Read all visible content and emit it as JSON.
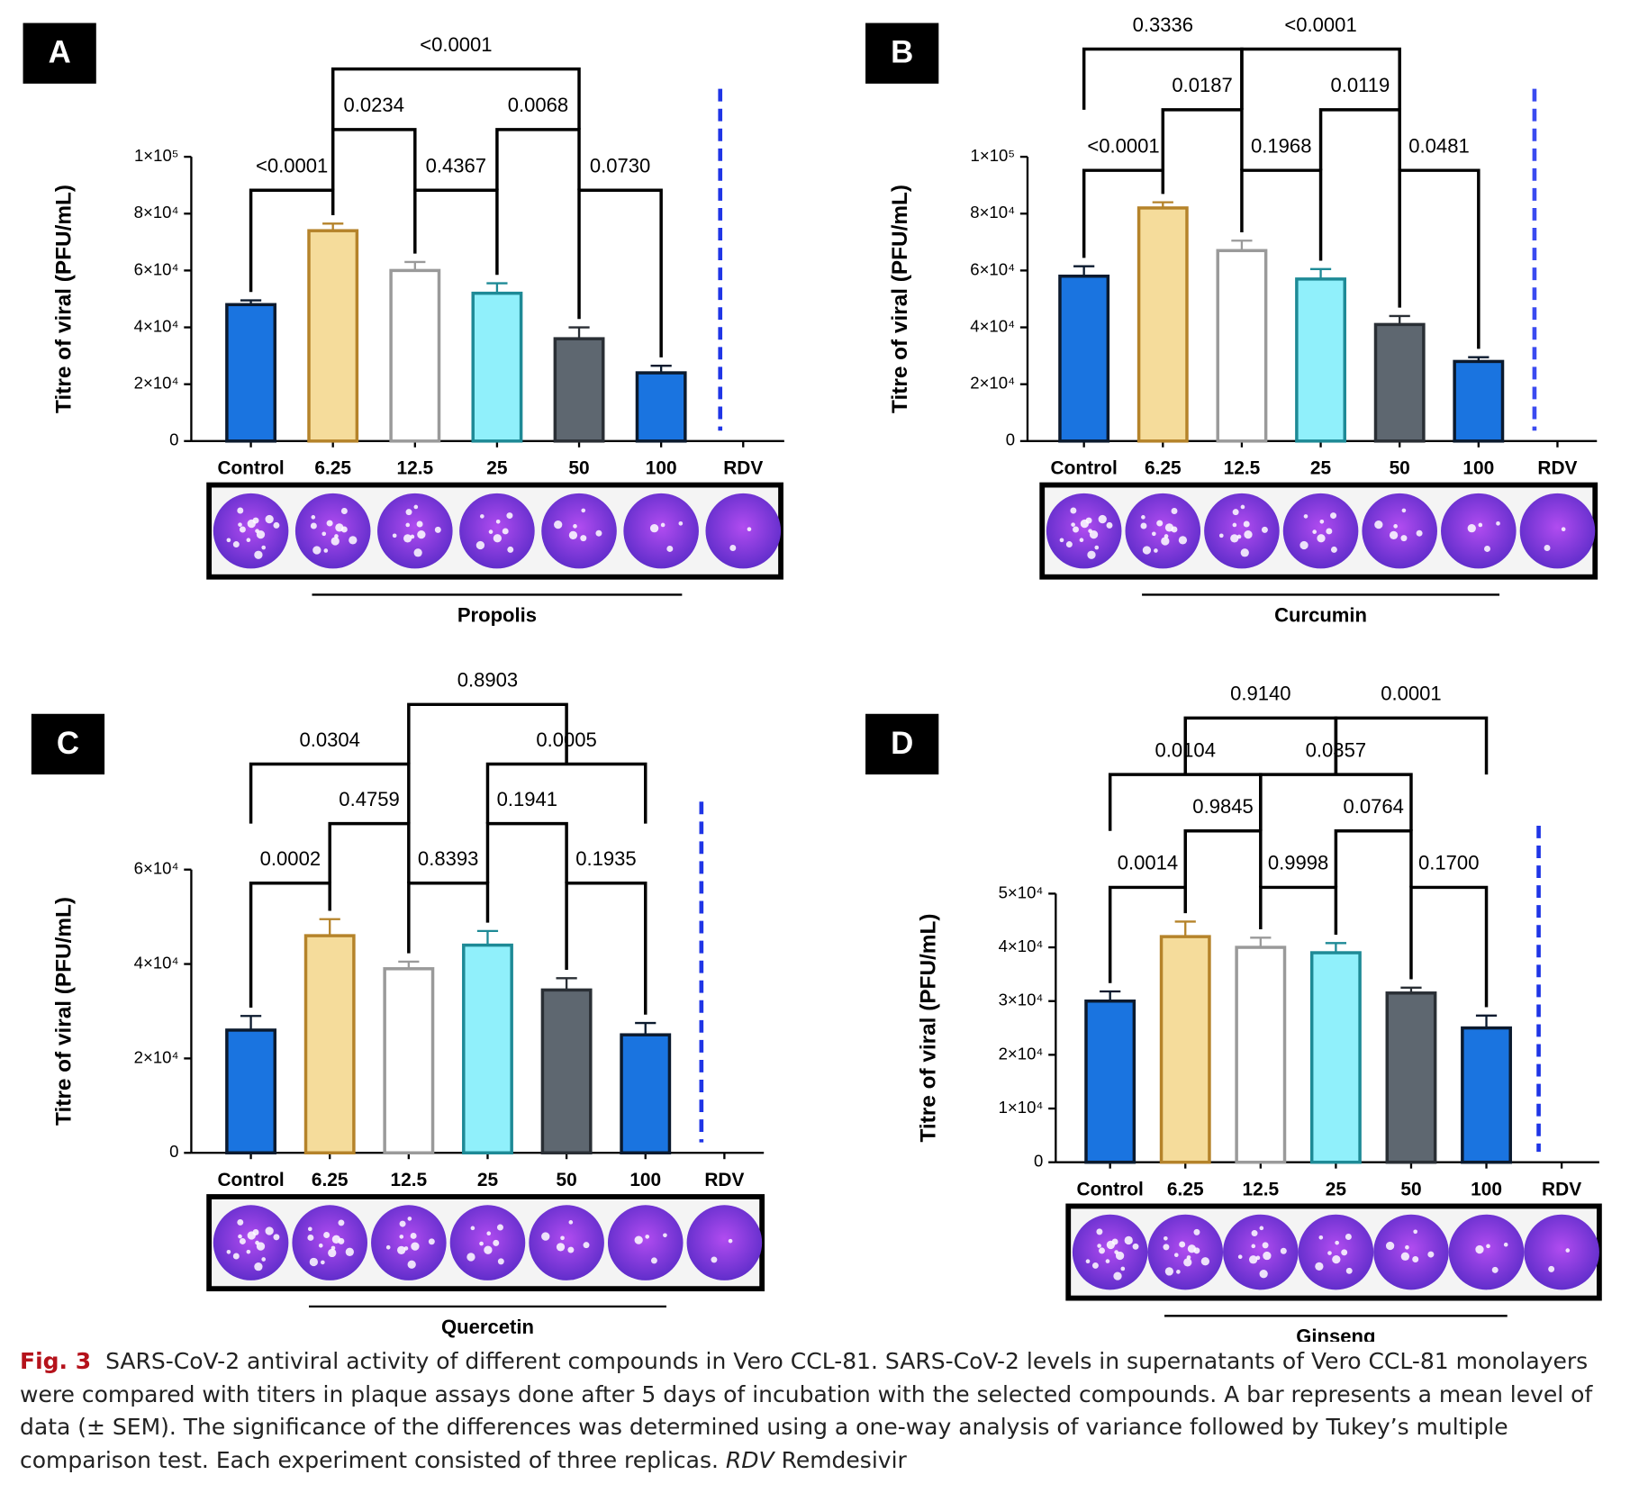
{
  "chart_data": [
    {
      "type": "bar",
      "panel": "A",
      "ylabel": "Titre of viral (PFU/mL)",
      "compound": "Propolis",
      "categories": [
        "Control",
        "6.25",
        "12.5",
        "25",
        "50",
        "100",
        "RDV"
      ],
      "values": [
        48000,
        74000,
        60000,
        52000,
        36000,
        24000,
        null
      ],
      "errors": [
        1500,
        2500,
        3000,
        3500,
        4000,
        2500,
        null
      ],
      "colors": [
        "#1a74e0",
        "#f5dc9b",
        "#ffffff",
        "#90f0fb",
        "#5e6770",
        "#1a74e0",
        null
      ],
      "edge_colors": [
        "#0b1a2e",
        "#b5832a",
        "#9a9a9a",
        "#1e8a96",
        "#2a2f35",
        "#0b1a2e",
        null
      ],
      "dashed_color": "#1f35e6",
      "ylim": [
        0,
        100000
      ],
      "yticks": [
        0,
        {
          "value": 20000,
          "label": "2×10⁴"
        },
        {
          "value": 40000,
          "label": "4×10⁴"
        },
        {
          "value": 60000,
          "label": "6×10⁴"
        },
        {
          "value": 80000,
          "label": "8×10⁴"
        },
        {
          "value": 100000,
          "label": "1×10⁵"
        }
      ],
      "comparisons": [
        [
          {
            "from": "Control",
            "to": "6.25",
            "label": "<0.0001"
          },
          {
            "from": "12.5",
            "to": "25",
            "label": "0.4367"
          },
          {
            "from": "50",
            "to": "100",
            "label": "0.0730"
          }
        ],
        [
          {
            "from": "6.25",
            "to": "12.5",
            "label": "0.0234"
          },
          {
            "from": "25",
            "to": "50",
            "label": "0.0068"
          }
        ],
        [
          {
            "from": "6.25",
            "to": "50",
            "label": "<0.0001"
          }
        ]
      ]
    },
    {
      "type": "bar",
      "panel": "B",
      "ylabel": "Titre of viral (PFU/mL)",
      "compound": "Curcumin",
      "categories": [
        "Control",
        "6.25",
        "12.5",
        "25",
        "50",
        "100",
        "RDV"
      ],
      "values": [
        58000,
        82000,
        67000,
        57000,
        41000,
        28000,
        null
      ],
      "errors": [
        3500,
        2000,
        3500,
        3500,
        3000,
        1500,
        null
      ],
      "colors": [
        "#1a74e0",
        "#f5dc9b",
        "#ffffff",
        "#90f0fb",
        "#5e6770",
        "#1a74e0",
        null
      ],
      "edge_colors": [
        "#0b1a2e",
        "#b5832a",
        "#9a9a9a",
        "#1e8a96",
        "#2a2f35",
        "#0b1a2e",
        null
      ],
      "dashed_color": "#3a4af0",
      "ylim": [
        0,
        100000
      ],
      "yticks": [
        0,
        {
          "value": 20000,
          "label": "2×10⁴"
        },
        {
          "value": 40000,
          "label": "4×10⁴"
        },
        {
          "value": 60000,
          "label": "6×10⁴"
        },
        {
          "value": 80000,
          "label": "8×10⁴"
        },
        {
          "value": 100000,
          "label": "1×10⁵"
        }
      ],
      "comparisons": [
        [
          {
            "from": "Control",
            "to": "6.25",
            "label": "<0.0001"
          },
          {
            "from": "12.5",
            "to": "25",
            "label": "0.1968"
          },
          {
            "from": "50",
            "to": "100",
            "label": "0.0481"
          }
        ],
        [
          {
            "from": "6.25",
            "to": "12.5",
            "label": "0.0187"
          },
          {
            "from": "25",
            "to": "50",
            "label": "0.0119"
          }
        ],
        [
          {
            "from": "Control",
            "to": "12.5",
            "label": "0.3336"
          },
          {
            "from": "12.5",
            "to": "50",
            "label": "<0.0001"
          }
        ]
      ]
    },
    {
      "type": "bar",
      "panel": "C",
      "ylabel": "Titre of viral (PFU/mL)",
      "compound": "Quercetin",
      "categories": [
        "Control",
        "6.25",
        "12.5",
        "25",
        "50",
        "100",
        "RDV"
      ],
      "values": [
        26000,
        46000,
        39000,
        44000,
        34500,
        25000,
        null
      ],
      "errors": [
        3000,
        3500,
        1500,
        3000,
        2500,
        2500,
        null
      ],
      "colors": [
        "#1a74e0",
        "#f5dc9b",
        "#ffffff",
        "#90f0fb",
        "#5e6770",
        "#1a74e0",
        null
      ],
      "edge_colors": [
        "#0b1a2e",
        "#b5832a",
        "#9a9a9a",
        "#1e8a96",
        "#2a2f35",
        "#0b1a2e",
        null
      ],
      "dashed_color": "#1f35e6",
      "ylim": [
        0,
        60000
      ],
      "yticks": [
        0,
        {
          "value": 20000,
          "label": "2×10⁴"
        },
        {
          "value": 40000,
          "label": "4×10⁴"
        },
        {
          "value": 60000,
          "label": "6×10⁴"
        }
      ],
      "comparisons": [
        [
          {
            "from": "Control",
            "to": "6.25",
            "label": "0.0002"
          },
          {
            "from": "12.5",
            "to": "25",
            "label": "0.8393"
          },
          {
            "from": "50",
            "to": "100",
            "label": "0.1935"
          }
        ],
        [
          {
            "from": "6.25",
            "to": "12.5",
            "label": "0.4759"
          },
          {
            "from": "25",
            "to": "50",
            "label": "0.1941"
          }
        ],
        [
          {
            "from": "Control",
            "to": "12.5",
            "label": "0.0304"
          },
          {
            "from": "25",
            "to": "100",
            "label": "0.0005"
          }
        ],
        [
          {
            "from": "12.5",
            "to": "50",
            "label": "0.8903"
          }
        ]
      ]
    },
    {
      "type": "bar",
      "panel": "D",
      "ylabel": "Titre of viral (PFU/mL)",
      "compound": "Ginseng",
      "categories": [
        "Control",
        "6.25",
        "12.5",
        "25",
        "50",
        "100",
        "RDV"
      ],
      "values": [
        30000,
        42000,
        40000,
        39000,
        31500,
        25000,
        null
      ],
      "errors": [
        1800,
        2800,
        1800,
        1800,
        1000,
        2300,
        null
      ],
      "colors": [
        "#1a74e0",
        "#f5dc9b",
        "#ffffff",
        "#90f0fb",
        "#5e6770",
        "#1a74e0",
        null
      ],
      "edge_colors": [
        "#0b1a2e",
        "#b5832a",
        "#9a9a9a",
        "#1e8a96",
        "#2a2f35",
        "#0b1a2e",
        null
      ],
      "dashed_color": "#1f35e6",
      "ylim": [
        0,
        50000
      ],
      "yticks": [
        0,
        {
          "value": 10000,
          "label": "1×10⁴"
        },
        {
          "value": 20000,
          "label": "2×10⁴"
        },
        {
          "value": 30000,
          "label": "3×10⁴"
        },
        {
          "value": 40000,
          "label": "4×10⁴"
        },
        {
          "value": 50000,
          "label": "5×10⁴"
        }
      ],
      "comparisons": [
        [
          {
            "from": "Control",
            "to": "6.25",
            "label": "0.0014"
          },
          {
            "from": "12.5",
            "to": "25",
            "label": "0.9998"
          },
          {
            "from": "50",
            "to": "100",
            "label": "0.1700"
          }
        ],
        [
          {
            "from": "6.25",
            "to": "12.5",
            "label": "0.9845"
          },
          {
            "from": "25",
            "to": "50",
            "label": "0.0764"
          }
        ],
        [
          {
            "from": "Control",
            "to": "12.5",
            "label": "0.0104"
          },
          {
            "from": "12.5",
            "to": "50",
            "label": "0.0357"
          }
        ],
        [
          {
            "from": "6.25",
            "to": "25",
            "label": "0.9140"
          },
          {
            "from": "25",
            "to": "100",
            "label": "0.0001"
          }
        ]
      ]
    }
  ],
  "caption": {
    "label": "Fig. 3",
    "text": "SARS-CoV-2 antiviral activity of different compounds in Vero CCL-81. SARS-CoV-2 levels in supernatants of Vero CCL-81 monolayers were compared with titers in plaque assays done after 5 days of incubation with the selected compounds. A bar represents a mean level of data (± SEM). The significance of the differences was determined using a one-way analysis of variance followed by Tukey’s multiple comparison test. Each experiment consisted of three replicas.",
    "abbreviation": "RDV",
    "definition": "Remdesivir"
  }
}
